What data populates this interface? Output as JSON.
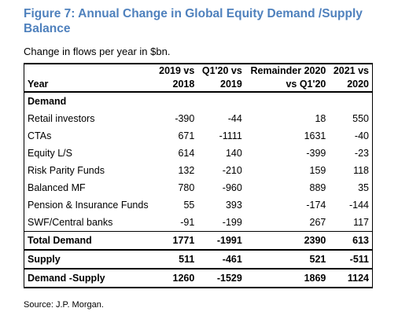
{
  "title": "Figure 7: Annual Change in Global Equity Demand /Supply Balance",
  "subtitle": "Change in flows per year in $bn.",
  "table": {
    "header": [
      [
        "Year"
      ],
      [
        "2019 vs",
        "2018"
      ],
      [
        "Q1'20 vs",
        "2019"
      ],
      [
        "Remainder 2020",
        "vs Q1'20"
      ],
      [
        "2021 vs",
        "2020"
      ]
    ],
    "section": "Demand",
    "rows": [
      [
        "Retail investors",
        -390,
        -44,
        18,
        550
      ],
      [
        "CTAs",
        671,
        -1111,
        1631,
        -40
      ],
      [
        "Equity L/S",
        614,
        140,
        -399,
        -23
      ],
      [
        "Risk Parity Funds",
        132,
        -210,
        159,
        118
      ],
      [
        "Balanced MF",
        780,
        -960,
        889,
        35
      ],
      [
        "Pension & Insurance Funds",
        55,
        393,
        -174,
        -144
      ],
      [
        "SWF/Central banks",
        -91,
        -199,
        267,
        117
      ]
    ],
    "totals": [
      [
        "Total Demand",
        1771,
        -1991,
        2390,
        613
      ],
      [
        "Supply",
        511,
        -461,
        521,
        -511
      ],
      [
        "Demand -Supply",
        1260,
        -1529,
        1869,
        1124
      ]
    ]
  },
  "source": "Source: J.P. Morgan."
}
